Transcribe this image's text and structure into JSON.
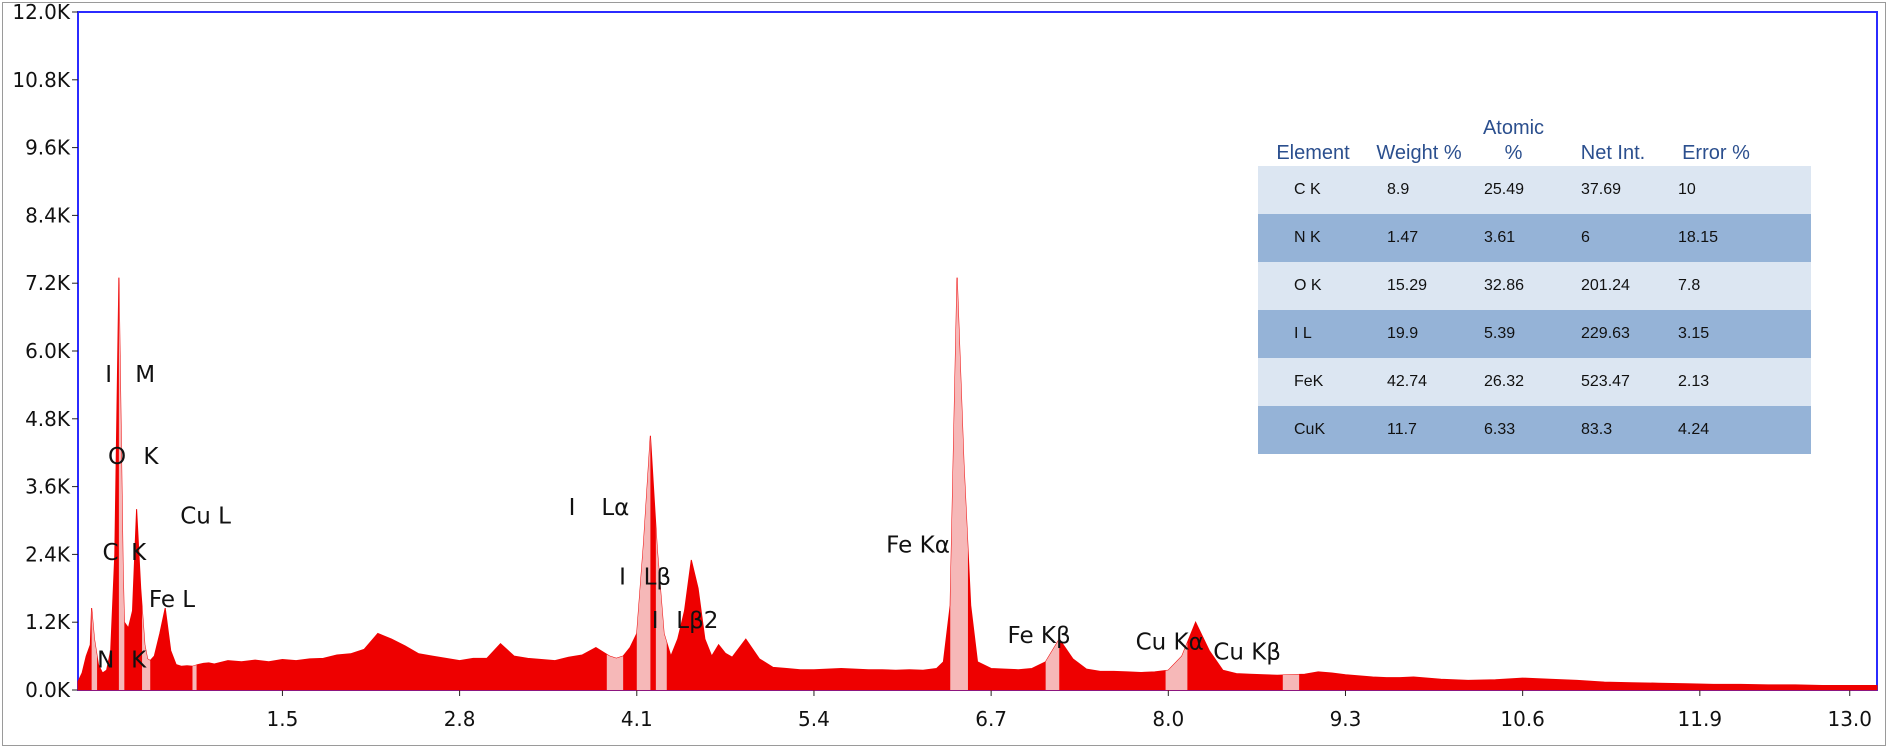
{
  "chart_data": {
    "type": "area",
    "title": "",
    "xlabel": "",
    "ylabel": "",
    "xlim": [
      0,
      13.2
    ],
    "ylim": [
      0,
      12000
    ],
    "x_tick_labels": [
      "1.5",
      "2.8",
      "4.1",
      "5.4",
      "6.7",
      "8.0",
      "9.3",
      "10.6",
      "11.9",
      "13.0"
    ],
    "y_tick_labels": [
      "0.0K",
      "1.2K",
      "2.4K",
      "3.6K",
      "4.8K",
      "6.0K",
      "7.2K",
      "8.4K",
      "9.6K",
      "10.8K",
      "12.0K"
    ],
    "color": "#ee0000",
    "highlight_color": "#f6b8b8",
    "series": [
      {
        "x": [
          0.0,
          0.03,
          0.06,
          0.09,
          0.1,
          0.12,
          0.15,
          0.18,
          0.21,
          0.24,
          0.27,
          0.3,
          0.33,
          0.34,
          0.37,
          0.4,
          0.43,
          0.46,
          0.49,
          0.51,
          0.53,
          0.56,
          0.6,
          0.64,
          0.68,
          0.72,
          0.76,
          0.8,
          0.84,
          0.88,
          0.92,
          0.96,
          1.0,
          1.1,
          1.2,
          1.3,
          1.4,
          1.5,
          1.6,
          1.7,
          1.8,
          1.9,
          2.0,
          2.1,
          2.2,
          2.3,
          2.4,
          2.5,
          2.6,
          2.7,
          2.8,
          2.9,
          3.0,
          3.1,
          3.2,
          3.3,
          3.4,
          3.5,
          3.6,
          3.7,
          3.8,
          3.9,
          3.95,
          4.0,
          4.05,
          4.1,
          4.15,
          4.2,
          4.25,
          4.3,
          4.35,
          4.4,
          4.45,
          4.5,
          4.55,
          4.6,
          4.65,
          4.7,
          4.75,
          4.8,
          4.9,
          5.0,
          5.1,
          5.2,
          5.3,
          5.4,
          5.5,
          5.6,
          5.7,
          5.8,
          5.9,
          6.0,
          6.1,
          6.2,
          6.3,
          6.35,
          6.4,
          6.45,
          6.5,
          6.55,
          6.6,
          6.7,
          6.8,
          6.9,
          7.0,
          7.1,
          7.2,
          7.3,
          7.4,
          7.5,
          7.6,
          7.7,
          7.8,
          7.9,
          8.0,
          8.1,
          8.2,
          8.3,
          8.4,
          8.5,
          8.6,
          8.7,
          8.8,
          8.9,
          9.0,
          9.1,
          9.2,
          9.3,
          9.4,
          9.5,
          9.6,
          9.7,
          9.8,
          9.9,
          10.0,
          10.2,
          10.4,
          10.6,
          10.8,
          11.0,
          11.2,
          11.4,
          11.6,
          11.8,
          12.0,
          12.2,
          12.4,
          12.6,
          12.8,
          13.0,
          13.2
        ],
        "y": [
          150,
          300,
          600,
          800,
          1450,
          900,
          450,
          300,
          350,
          700,
          2400,
          7300,
          2200,
          1200,
          1100,
          1400,
          3200,
          1800,
          800,
          550,
          520,
          600,
          1000,
          1450,
          700,
          450,
          420,
          430,
          420,
          450,
          470,
          480,
          460,
          520,
          500,
          530,
          500,
          540,
          520,
          550,
          560,
          620,
          640,
          720,
          1000,
          900,
          780,
          640,
          600,
          560,
          520,
          560,
          560,
          820,
          600,
          560,
          540,
          520,
          580,
          620,
          750,
          600,
          560,
          600,
          750,
          1000,
          2600,
          4500,
          2500,
          1000,
          600,
          900,
          1400,
          2300,
          1800,
          900,
          600,
          800,
          650,
          580,
          900,
          550,
          400,
          380,
          360,
          360,
          370,
          380,
          370,
          360,
          360,
          350,
          360,
          350,
          380,
          500,
          1500,
          7300,
          4000,
          1500,
          500,
          380,
          370,
          360,
          380,
          500,
          900,
          550,
          370,
          330,
          330,
          320,
          310,
          320,
          350,
          600,
          1200,
          700,
          350,
          290,
          280,
          270,
          260,
          270,
          280,
          320,
          300,
          270,
          250,
          230,
          220,
          220,
          230,
          210,
          190,
          170,
          180,
          210,
          190,
          170,
          140,
          130,
          120,
          110,
          100,
          100,
          90,
          90,
          80,
          80,
          80
        ]
      }
    ],
    "highlight_bands": [
      [
        0.1,
        0.14
      ],
      [
        0.3,
        0.34
      ],
      [
        0.47,
        0.53
      ],
      [
        0.84,
        0.87
      ],
      [
        3.88,
        4.0
      ],
      [
        4.1,
        4.2
      ],
      [
        4.24,
        4.32
      ],
      [
        6.4,
        6.53
      ],
      [
        7.1,
        7.2
      ],
      [
        7.98,
        8.14
      ],
      [
        8.84,
        8.96
      ]
    ],
    "peak_labels": [
      {
        "text": "N",
        "x": 0.14,
        "y": 400
      },
      {
        "text": "K",
        "x": 0.39,
        "y": 400
      },
      {
        "text": "C",
        "x": 0.18,
        "y": 2300
      },
      {
        "text": "K",
        "x": 0.39,
        "y": 2300
      },
      {
        "text": "O",
        "x": 0.22,
        "y": 4000
      },
      {
        "text": "K",
        "x": 0.48,
        "y": 4000
      },
      {
        "text": "I",
        "x": 0.2,
        "y": 5450
      },
      {
        "text": "M",
        "x": 0.42,
        "y": 5450
      },
      {
        "text": "Fe L",
        "x": 0.52,
        "y": 1470
      },
      {
        "text": "Cu L",
        "x": 0.75,
        "y": 2950
      },
      {
        "text": "I",
        "x": 3.6,
        "y": 3100
      },
      {
        "text": "Lα",
        "x": 3.84,
        "y": 3100
      },
      {
        "text": "I",
        "x": 3.97,
        "y": 1870
      },
      {
        "text": "Lβ",
        "x": 4.15,
        "y": 1870
      },
      {
        "text": "I",
        "x": 4.21,
        "y": 1100
      },
      {
        "text": "Lβ2",
        "x": 4.39,
        "y": 1100
      },
      {
        "text": "Fe Kα",
        "x": 5.93,
        "y": 2430
      },
      {
        "text": "Fe Kβ",
        "x": 6.82,
        "y": 830
      },
      {
        "text": "Cu Kα",
        "x": 7.76,
        "y": 720
      },
      {
        "text": "Cu Kβ",
        "x": 8.33,
        "y": 540
      }
    ]
  },
  "table": {
    "headers": {
      "element": "Element",
      "weight": "Weight %",
      "atomic_line1": "Atomic",
      "atomic_line2": "%",
      "net": "Net Int.",
      "error": "Error %"
    },
    "rows": [
      {
        "element": "C K",
        "weight": "8.9",
        "atomic": "25.49",
        "net": "37.69",
        "error": "10"
      },
      {
        "element": "N K",
        "weight": "1.47",
        "atomic": "3.61",
        "net": "6",
        "error": "18.15"
      },
      {
        "element": "O K",
        "weight": "15.29",
        "atomic": "32.86",
        "net": "201.24",
        "error": "7.8"
      },
      {
        "element": "I L",
        "weight": "19.9",
        "atomic": "5.39",
        "net": "229.63",
        "error": "3.15"
      },
      {
        "element": "FeK",
        "weight": "42.74",
        "atomic": "26.32",
        "net": "523.47",
        "error": "2.13"
      },
      {
        "element": "CuK",
        "weight": "11.7",
        "atomic": "6.33",
        "net": "83.3",
        "error": "4.24"
      }
    ],
    "row_colors": [
      "#dce6f2",
      "#95b3d7"
    ]
  }
}
